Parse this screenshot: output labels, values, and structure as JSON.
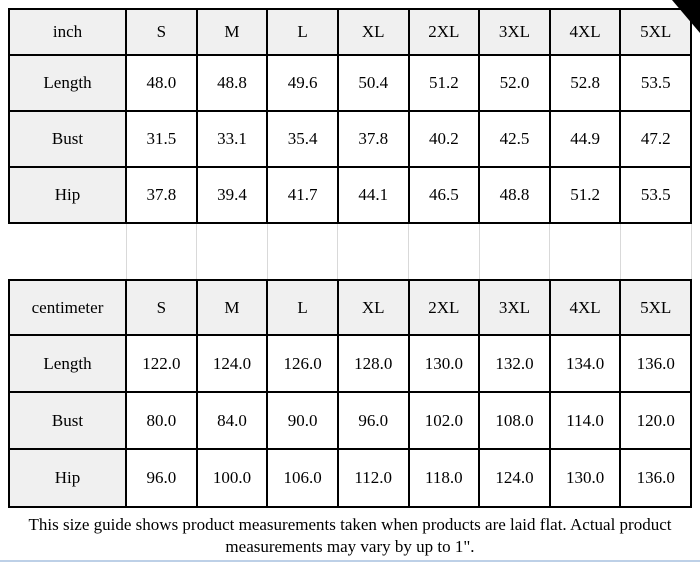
{
  "colors": {
    "page-bg": "#ffffff",
    "grid-border": "#000000",
    "header-bg": "#f0f0f0",
    "spacer-line": "#d9d9d9",
    "bottom-line": "#bdd0e7",
    "corner": "#000000",
    "text": "#000000"
  },
  "chart_data": {
    "type": "table",
    "title": "Size guide (product measurements laid flat)",
    "sections": [
      {
        "unit": "inch",
        "header": [
          "inch",
          "S",
          "M",
          "L",
          "XL",
          "2XL",
          "3XL",
          "4XL",
          "5XL"
        ],
        "rows": [
          [
            "Length",
            "48.0",
            "48.8",
            "49.6",
            "50.4",
            "51.2",
            "52.0",
            "52.8",
            "53.5"
          ],
          [
            "Bust",
            "31.5",
            "33.1",
            "35.4",
            "37.8",
            "40.2",
            "42.5",
            "44.9",
            "47.2"
          ],
          [
            "Hip",
            "37.8",
            "39.4",
            "41.7",
            "44.1",
            "46.5",
            "48.8",
            "51.2",
            "53.5"
          ]
        ]
      },
      {
        "unit": "centimeter",
        "header": [
          "centimeter",
          "S",
          "M",
          "L",
          "XL",
          "2XL",
          "3XL",
          "4XL",
          "5XL"
        ],
        "rows": [
          [
            "Length",
            "122.0",
            "124.0",
            "126.0",
            "128.0",
            "130.0",
            "132.0",
            "134.0",
            "136.0"
          ],
          [
            "Bust",
            "80.0",
            "84.0",
            "90.0",
            "96.0",
            "102.0",
            "108.0",
            "114.0",
            "120.0"
          ],
          [
            "Hip",
            "96.0",
            "100.0",
            "106.0",
            "112.0",
            "118.0",
            "124.0",
            "130.0",
            "136.0"
          ]
        ]
      }
    ],
    "note": "This size guide shows product measurements taken when products are laid flat. Actual product measurements may vary by up to 1\"."
  },
  "footer": {
    "lines": [
      "This size guide shows product measurements taken when products are laid flat. Actual product",
      "measurements may vary by up to 1\"."
    ]
  }
}
